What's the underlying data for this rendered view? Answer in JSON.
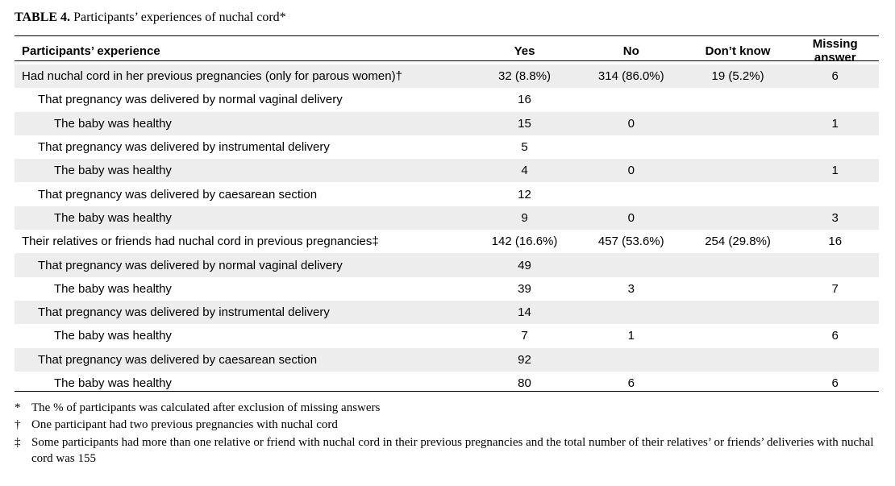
{
  "title": {
    "label": "TABLE 4.",
    "text": "Participants’ experiences of nuchal cord*"
  },
  "table": {
    "headers": [
      "Participants’ experience",
      "Yes",
      "No",
      "Don’t know",
      "Missing answer"
    ],
    "rows": [
      {
        "label": "Had nuchal cord in her previous pregnancies (only for parous women)†",
        "yes": "32 (8.8%)",
        "no": "314 (86.0%)",
        "dk": "19 (5.2%)",
        "missing": "6"
      },
      {
        "label": "That pregnancy was delivered by normal vaginal delivery",
        "yes": "16",
        "no": "",
        "dk": "",
        "missing": ""
      },
      {
        "label": "The baby was healthy",
        "yes": "15",
        "no": "0",
        "dk": "",
        "missing": "1"
      },
      {
        "label": "That pregnancy was delivered by instrumental delivery",
        "yes": "5",
        "no": "",
        "dk": "",
        "missing": ""
      },
      {
        "label": "The baby was healthy",
        "yes": "4",
        "no": "0",
        "dk": "",
        "missing": "1"
      },
      {
        "label": "That pregnancy was delivered by caesarean section",
        "yes": "12",
        "no": "",
        "dk": "",
        "missing": ""
      },
      {
        "label": "The baby was healthy",
        "yes": "9",
        "no": "0",
        "dk": "",
        "missing": "3"
      },
      {
        "label": "Their relatives or friends had nuchal cord in previous pregnancies‡",
        "yes": "142 (16.6%)",
        "no": "457 (53.6%)",
        "dk": "254 (29.8%)",
        "missing": "16"
      },
      {
        "label": "That pregnancy was delivered by normal vaginal delivery",
        "yes": "49",
        "no": "",
        "dk": "",
        "missing": ""
      },
      {
        "label": "The baby was healthy",
        "yes": "39",
        "no": "3",
        "dk": "",
        "missing": "7"
      },
      {
        "label": "That pregnancy was delivered by instrumental delivery",
        "yes": "14",
        "no": "",
        "dk": "",
        "missing": ""
      },
      {
        "label": "The baby was healthy",
        "yes": "7",
        "no": "1",
        "dk": "",
        "missing": "6"
      },
      {
        "label": "That pregnancy was delivered by caesarean section",
        "yes": "92",
        "no": "",
        "dk": "",
        "missing": ""
      },
      {
        "label": "The baby was healthy",
        "yes": "80",
        "no": "6",
        "dk": "",
        "missing": "6"
      }
    ]
  },
  "footnotes": [
    {
      "symbol": "*",
      "text": "The % of participants was calculated after exclusion of missing answers"
    },
    {
      "symbol": "†",
      "text": "One participant had two previous pregnancies with nuchal cord"
    },
    {
      "symbol": "‡",
      "text": "Some participants had more than one relative or friend with nuchal cord in their previous pregnancies and the total number of their relatives’ or friends’ deliveries with nuchal cord was 155"
    }
  ]
}
